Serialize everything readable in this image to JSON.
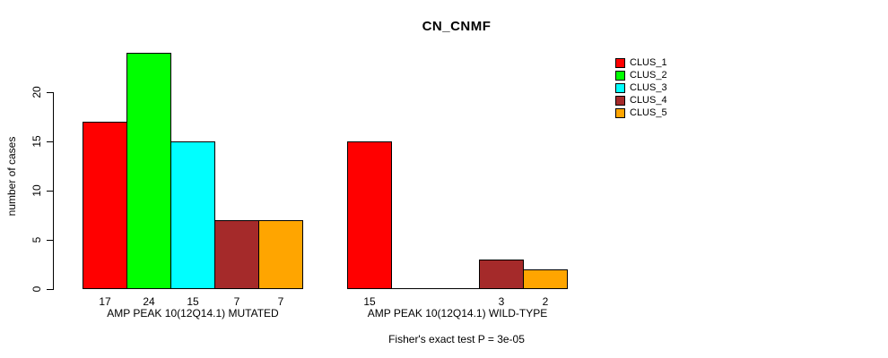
{
  "chart_data": {
    "type": "bar",
    "title": "CN_CNMF",
    "ylabel": "number of cases",
    "xlabel": "",
    "yticks": [
      0,
      5,
      10,
      15,
      20
    ],
    "ylim": [
      0,
      24
    ],
    "grid": false,
    "legend_position": "topright",
    "series": [
      "CLUS_1",
      "CLUS_2",
      "CLUS_3",
      "CLUS_4",
      "CLUS_5"
    ],
    "colors": [
      "#FF0000",
      "#00FF00",
      "#00FFFF",
      "#A52A2A",
      "#FFA500"
    ],
    "groups": [
      {
        "label": "AMP PEAK 10(12Q14.1) MUTATED",
        "values": [
          17,
          24,
          15,
          7,
          7
        ]
      },
      {
        "label": "AMP PEAK 10(12Q14.1) WILD-TYPE",
        "values": [
          15,
          0,
          0,
          3,
          2
        ]
      }
    ],
    "bar_value_labels_shown_for_zero": false,
    "footnote": "Fisher's exact test P = 3e-05"
  }
}
